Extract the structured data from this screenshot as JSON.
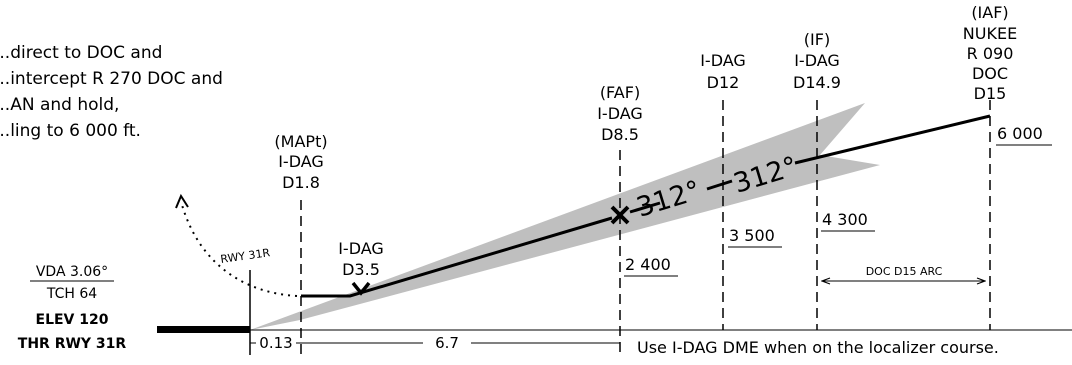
{
  "missed_approach_text": [
    "...direct to DOC and",
    "...intercept R 270 DOC and",
    "...AN and hold,",
    "...ling to 6 000 ft."
  ],
  "fixes": {
    "iaf": {
      "role": "(IAF)",
      "name": "NUKEE",
      "radial": "R 090",
      "nav": "DOC",
      "dist": "D15"
    },
    "if": {
      "role": "(IF)",
      "nav": "I-DAG",
      "dist": "D14.9"
    },
    "d12": {
      "nav": "I-DAG",
      "dist": "D12"
    },
    "faf": {
      "role": "(FAF)",
      "nav": "I-DAG",
      "dist": "D8.5"
    },
    "mapt": {
      "role": "(MAPt)",
      "nav": "I-DAG",
      "dist": "D1.8"
    },
    "d35": {
      "nav": "I-DAG",
      "dist": "D3.5"
    }
  },
  "altitudes": {
    "iaf": "6 000",
    "if": "4 300",
    "d12": "3 500",
    "faf": "2 400"
  },
  "course_labels": [
    "312°",
    "312°"
  ],
  "arc_label": "DOC D15 ARC",
  "runway_label": "RWY 31R",
  "threshold": {
    "vda": "VDA 3.06°",
    "tch": "TCH 64",
    "elev": "ELEV 120",
    "thr": "THR RWY 31R"
  },
  "distances": {
    "thr_to_mapt": "0.13",
    "mapt_to_faf": "6.7"
  },
  "note": "Use I-DAG DME when on the localizer course."
}
